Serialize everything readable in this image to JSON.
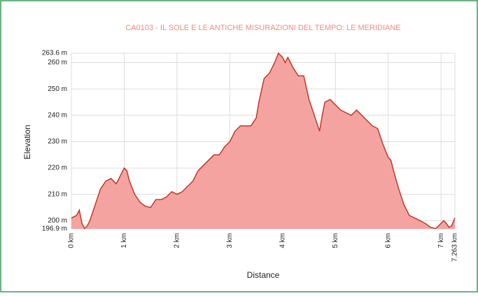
{
  "chart_data": {
    "type": "area",
    "title": "CA0103 - IL SOLE E LE ANTICHE MISURAZIONI DEL TEMPO: LE MERIDIANE",
    "xlabel": "Distance",
    "ylabel": "Elevation",
    "color": "#f4a3a0",
    "line_color": "#c0392b",
    "grid": true,
    "xlim": [
      0,
      7.263
    ],
    "ylim": [
      196.9,
      263.6
    ],
    "xticks": [
      {
        "value": 0,
        "label": "0 km"
      },
      {
        "value": 1,
        "label": "1 km"
      },
      {
        "value": 2,
        "label": "2 km"
      },
      {
        "value": 3,
        "label": "3 km"
      },
      {
        "value": 4,
        "label": "4 km"
      },
      {
        "value": 5,
        "label": "5 km"
      },
      {
        "value": 6,
        "label": "6 km"
      },
      {
        "value": 7,
        "label": "7 km"
      },
      {
        "value": 7.263,
        "label": "7.263 km"
      }
    ],
    "yticks": [
      {
        "value": 196.9,
        "label": "196.9 m"
      },
      {
        "value": 200,
        "label": "200 m"
      },
      {
        "value": 210,
        "label": "210 m"
      },
      {
        "value": 220,
        "label": "220 m"
      },
      {
        "value": 230,
        "label": "230 m"
      },
      {
        "value": 240,
        "label": "240 m"
      },
      {
        "value": 250,
        "label": "250 m"
      },
      {
        "value": 260,
        "label": "260 m"
      },
      {
        "value": 263.6,
        "label": "263.6 m"
      }
    ],
    "x": [
      0,
      0.1,
      0.15,
      0.2,
      0.25,
      0.3,
      0.35,
      0.45,
      0.55,
      0.65,
      0.75,
      0.85,
      0.95,
      1.0,
      1.05,
      1.1,
      1.2,
      1.3,
      1.4,
      1.5,
      1.6,
      1.7,
      1.8,
      1.9,
      2.0,
      2.1,
      2.2,
      2.3,
      2.4,
      2.5,
      2.6,
      2.7,
      2.8,
      2.9,
      3.0,
      3.1,
      3.2,
      3.3,
      3.4,
      3.5,
      3.55,
      3.65,
      3.75,
      3.85,
      3.92,
      4.0,
      4.05,
      4.1,
      4.2,
      4.3,
      4.4,
      4.5,
      4.6,
      4.7,
      4.75,
      4.8,
      4.9,
      5.0,
      5.1,
      5.2,
      5.3,
      5.4,
      5.5,
      5.6,
      5.7,
      5.8,
      5.9,
      6.0,
      6.05,
      6.1,
      6.2,
      6.3,
      6.4,
      6.5,
      6.6,
      6.7,
      6.8,
      6.9,
      7.0,
      7.05,
      7.1,
      7.15,
      7.2,
      7.263
    ],
    "y": [
      201,
      202,
      204,
      199,
      197,
      198,
      200,
      206,
      212,
      215,
      216,
      214,
      218,
      220,
      219,
      215,
      210,
      207,
      205.5,
      205,
      208,
      208,
      209,
      211,
      210,
      211,
      213,
      215,
      219,
      221,
      223,
      225,
      225,
      228,
      230,
      234,
      236,
      236,
      236,
      239,
      245,
      254,
      256,
      260,
      263.6,
      262,
      260,
      262,
      258,
      255,
      255,
      246,
      240,
      234,
      240,
      245,
      246,
      244,
      242,
      241,
      240,
      242,
      240,
      238,
      236,
      235,
      229,
      224,
      223,
      219,
      212,
      206,
      202,
      201,
      200,
      199,
      197.5,
      197,
      199,
      200,
      199,
      197.5,
      198,
      201
    ]
  }
}
